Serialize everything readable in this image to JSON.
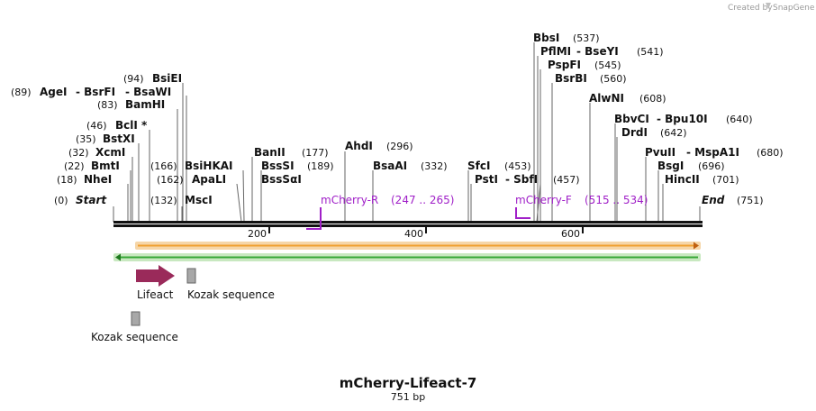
{
  "credit": {
    "prefix": "Created by",
    "brand": "SnapGene"
  },
  "sequence": {
    "name": "mCherry-Lifeact-7",
    "length_label": "751 bp",
    "length": 751
  },
  "ruler": {
    "ticks": [
      "200",
      "400",
      "600"
    ]
  },
  "sites": [
    {
      "id": "start",
      "name": "Start",
      "pos": "(0)",
      "italic": true,
      "pre": true
    },
    {
      "id": "nhei",
      "name": "NheI",
      "pos": "(18)",
      "pre": true
    },
    {
      "id": "bmti",
      "name": "BmtI",
      "pos": "(22)",
      "pre": true
    },
    {
      "id": "xcmi",
      "name": "XcmI",
      "pos": "(32)",
      "pre": true
    },
    {
      "id": "bstxi",
      "name": "BstXI",
      "pos": "(35)",
      "pre": true
    },
    {
      "id": "bcli",
      "name": "BclI *",
      "pos": "(46)",
      "pre": true
    },
    {
      "id": "bamhi",
      "name": "BamHI",
      "pos": "(83)",
      "pre": true
    },
    {
      "id": "agei",
      "name": "AgeI",
      "pos": "(89)",
      "pre": true
    },
    {
      "id": "bsrfi",
      "name": "-  BsrFI",
      "pos": ""
    },
    {
      "id": "bsawi",
      "name": "-  BsaWI",
      "pos": ""
    },
    {
      "id": "bsiei",
      "name": "BsiEI",
      "pos": "(94)",
      "pre": true
    },
    {
      "id": "msci",
      "name": "MscI",
      "pos": "(132)",
      "pre": true
    },
    {
      "id": "apali",
      "name": "ApaLI",
      "pos": "(162)",
      "pre": true
    },
    {
      "id": "bsihkai",
      "name": "BsiHKAI",
      "pos": "(166)",
      "pre": true
    },
    {
      "id": "banii",
      "name": "BanII",
      "pos": "(177)"
    },
    {
      "id": "bsssi",
      "name": "BssSI",
      "pos": "(189)"
    },
    {
      "id": "bsssai",
      "name": "BssSαI",
      "pos": ""
    },
    {
      "id": "ahdi",
      "name": "AhdI",
      "pos": "(296)"
    },
    {
      "id": "bsaai",
      "name": "BsaAI",
      "pos": "(332)"
    },
    {
      "id": "sfci",
      "name": "SfcI",
      "pos": "(453)"
    },
    {
      "id": "psti",
      "name": "PstI",
      "pos": "(457)"
    },
    {
      "id": "sbfi",
      "name": "-  SbfI",
      "pos": ""
    },
    {
      "id": "bbsi",
      "name": "BbsI",
      "pos": "(537)"
    },
    {
      "id": "pflmi",
      "name": "PflMI",
      "pos": ""
    },
    {
      "id": "bseyi",
      "name": "-  BseYI",
      "pos": "(541)"
    },
    {
      "id": "pspfi",
      "name": "PspFI",
      "pos": "(545)"
    },
    {
      "id": "bsrbi",
      "name": "BsrBI",
      "pos": "(560)"
    },
    {
      "id": "alwni",
      "name": "AlwNI",
      "pos": "(608)"
    },
    {
      "id": "bbvci",
      "name": "BbvCI",
      "pos": ""
    },
    {
      "id": "bpu10i",
      "name": "-  Bpu10I",
      "pos": "(640)"
    },
    {
      "id": "drdi",
      "name": "DrdI",
      "pos": "(642)"
    },
    {
      "id": "pvuii",
      "name": "PvuII",
      "pos": ""
    },
    {
      "id": "mspa1i",
      "name": "-  MspA1I",
      "pos": "(680)"
    },
    {
      "id": "bsgi",
      "name": "BsgI",
      "pos": "(696)"
    },
    {
      "id": "hincii",
      "name": "HincII",
      "pos": "(701)"
    },
    {
      "id": "end",
      "name": "End",
      "pos": "(751)",
      "italic": true
    }
  ],
  "cut_positions": [
    0,
    18,
    22,
    32,
    35,
    46,
    83,
    89,
    94,
    132,
    162,
    166,
    177,
    189,
    296,
    332,
    453,
    457,
    537,
    541,
    545,
    560,
    608,
    640,
    642,
    680,
    696,
    701,
    751
  ],
  "primers": [
    {
      "id": "mcherry-r",
      "name": "mCherry-R",
      "range": "(247 .. 265)",
      "start": 247,
      "end": 265,
      "direction": "reverse"
    },
    {
      "id": "mcherry-f",
      "name": "mCherry-F",
      "range": "(515 .. 534)",
      "start": 515,
      "end": 534,
      "direction": "forward"
    }
  ],
  "features": [
    {
      "id": "orf-forward",
      "start": 30,
      "end": 751,
      "direction": "forward",
      "color": "#f0a030",
      "border": "#f6d6a8"
    },
    {
      "id": "orf-reverse",
      "start": 5,
      "end": 751,
      "direction": "reverse",
      "color": "#38a838",
      "border": "#c8e8c0"
    },
    {
      "id": "lifeact",
      "label": "Lifeact",
      "start": 30,
      "end": 81,
      "kind": "arrow",
      "color": "#9a2a5a"
    },
    {
      "id": "kozak-1",
      "label": "Kozak sequence",
      "start": 95,
      "end": 106,
      "kind": "box",
      "color": "#a8a8a8"
    },
    {
      "id": "kozak-2",
      "label": "Kozak sequence",
      "start": 24,
      "end": 35,
      "kind": "box",
      "color": "#a8a8a8"
    }
  ]
}
